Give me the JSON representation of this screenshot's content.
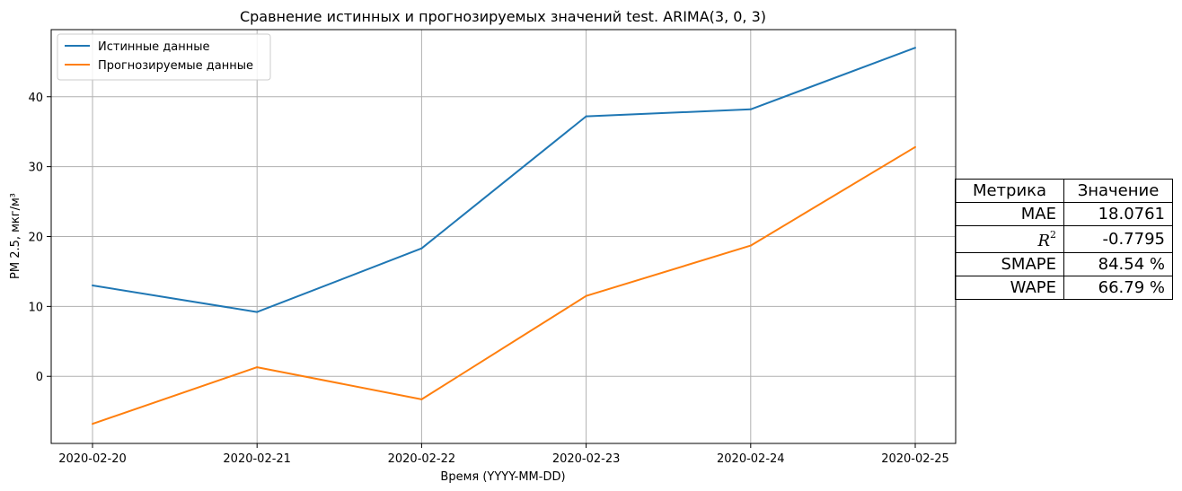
{
  "chart_data": {
    "type": "line",
    "title": "Сравнение истинных и прогнозируемых значений test. ARIMA(3, 0, 3)",
    "xlabel": "Время (YYYY-MM-DD)",
    "ylabel": "PM 2.5, мкг/м³",
    "categories": [
      "2020-02-20",
      "2020-02-21",
      "2020-02-22",
      "2020-02-23",
      "2020-02-24",
      "2020-02-25"
    ],
    "yticks": [
      0,
      10,
      20,
      30,
      40
    ],
    "ylim": [
      -9.6,
      49.6
    ],
    "grid": true,
    "legend_position": "top-left",
    "series": [
      {
        "name": "Истинные данные",
        "color": "#1f77b4",
        "values": [
          13.0,
          9.2,
          18.3,
          37.2,
          38.2,
          47.0
        ]
      },
      {
        "name": "Прогнозируемые данные",
        "color": "#ff7f0e",
        "values": [
          -6.8,
          1.3,
          -3.3,
          11.5,
          18.7,
          32.8
        ]
      }
    ]
  },
  "metrics_table": {
    "header": [
      "Метрика",
      "Значение"
    ],
    "rows": [
      {
        "metric": "MAE",
        "value": "18.0761"
      },
      {
        "metric": "R",
        "metric_sup": "2",
        "value": "-0.7795"
      },
      {
        "metric": "SMAPE",
        "value": "84.54 %"
      },
      {
        "metric": "WAPE",
        "value": "66.79 %"
      }
    ]
  }
}
